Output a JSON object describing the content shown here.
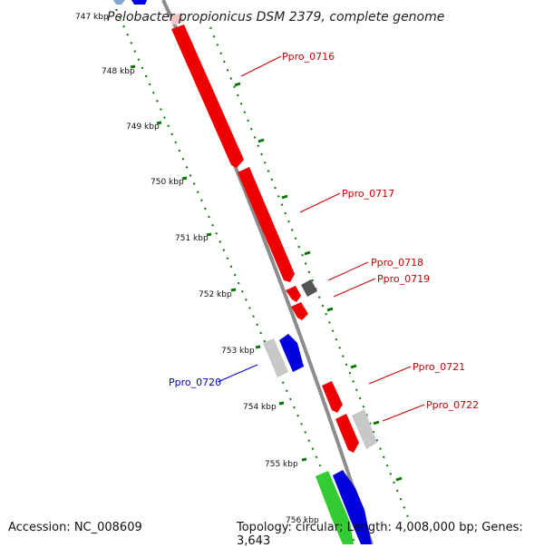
{
  "title": "Pelobacter propionicus DSM 2379, complete genome",
  "footer": {
    "accession": "Accession: NC_008609",
    "summary": "Topology: circular; Length: 4,008,000 bp; Genes: 3,643"
  },
  "ruler_ticks": [
    "747 kbp",
    "748 kbp",
    "749 kbp",
    "750 kbp",
    "751 kbp",
    "752 kbp",
    "753 kbp",
    "754 kbp",
    "755 kbp",
    "756 kbp"
  ],
  "gene_labels": {
    "Ppro_0716": "Ppro_0716",
    "Ppro_0717": "Ppro_0717",
    "Ppro_0718": "Ppro_0718",
    "Ppro_0719": "Ppro_0719",
    "Ppro_0720": "Ppro_0720",
    "Ppro_0721": "Ppro_0721",
    "Ppro_0722": "Ppro_0722"
  },
  "colors": {
    "forward_cds": "#ee0000",
    "other_gene": "#bdbdbd",
    "dark_gene": "#555555",
    "blue_gene": "#0000dd",
    "green_gene": "#33cc33",
    "backbone": "#888888",
    "ruler": "#007700"
  }
}
